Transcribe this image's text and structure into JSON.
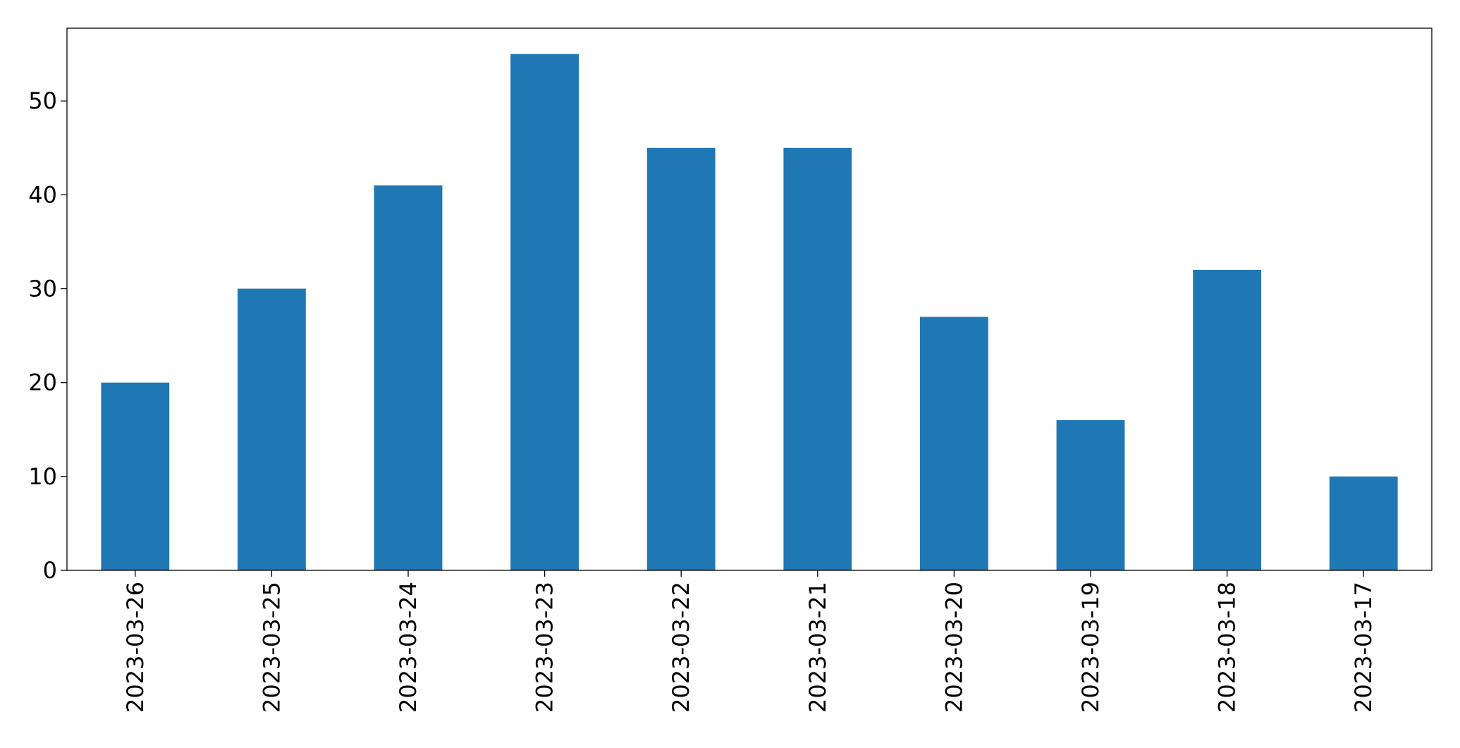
{
  "chart_data": {
    "type": "bar",
    "categories": [
      "2023-03-26",
      "2023-03-25",
      "2023-03-24",
      "2023-03-23",
      "2023-03-22",
      "2023-03-21",
      "2023-03-20",
      "2023-03-19",
      "2023-03-18",
      "2023-03-17"
    ],
    "values": [
      20,
      30,
      41,
      55,
      45,
      45,
      27,
      16,
      32,
      10
    ],
    "color": "#1f77b4",
    "ylim": [
      0,
      57.75
    ],
    "yticks": [
      0,
      10,
      20,
      30,
      40,
      50
    ],
    "grid": false
  }
}
